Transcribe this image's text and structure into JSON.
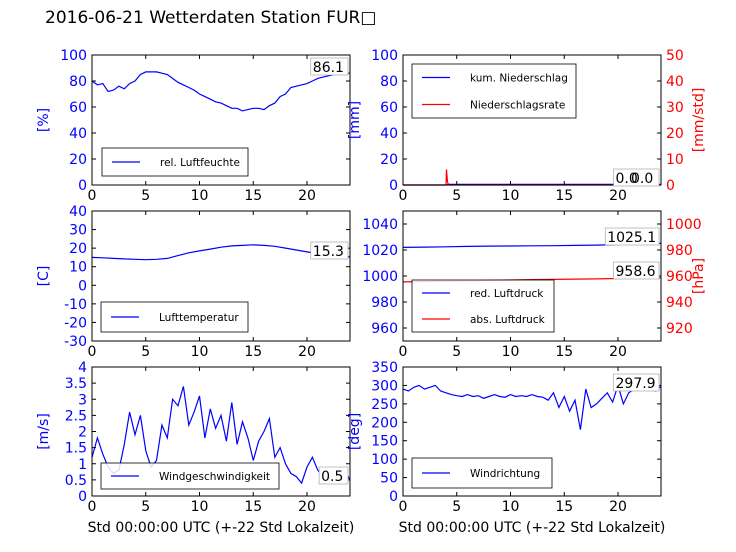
{
  "title": "2016-06-21 Wetterdaten Station FUR□",
  "xlabel": "Std 00:00:00 UTC (+-22 Std Lokalzeit)",
  "chart_data": [
    {
      "type": "line",
      "ylabel": "[%]",
      "xlim": [
        0,
        24
      ],
      "ylim": [
        0,
        100
      ],
      "xticks": [
        0,
        5,
        10,
        15,
        20
      ],
      "yticks": [
        0,
        20,
        40,
        60,
        80,
        100
      ],
      "current_value": "86.1",
      "legend_position": "lower-left",
      "series": [
        {
          "name": "rel. Luftfeuchte",
          "color": "#0000ff",
          "x": [
            0,
            0.5,
            1,
            1.5,
            2,
            2.5,
            3,
            3.5,
            4,
            4.5,
            5,
            5.5,
            6,
            6.5,
            7,
            7.5,
            8,
            8.5,
            9,
            9.5,
            10,
            10.5,
            11,
            11.5,
            12,
            12.5,
            13,
            13.5,
            14,
            14.5,
            15,
            15.5,
            16,
            16.5,
            17,
            17.5,
            18,
            18.5,
            19,
            19.5,
            20,
            20.5,
            21,
            21.5,
            22,
            22.5,
            23,
            23.5,
            24
          ],
          "y": [
            80,
            77,
            78,
            72,
            73,
            76,
            74,
            78,
            80,
            85,
            87,
            87,
            87,
            86,
            85,
            82,
            79,
            77,
            75,
            73,
            70,
            68,
            66,
            64,
            63,
            61,
            59,
            59,
            57,
            58,
            59,
            59,
            58,
            61,
            63,
            68,
            70,
            75,
            76,
            77,
            78,
            80,
            82,
            83,
            84,
            85,
            86,
            86,
            86
          ]
        }
      ]
    },
    {
      "type": "line",
      "ylabel": "[mm]",
      "ylabel_right": "[mm/std]",
      "xlim": [
        0,
        24
      ],
      "ylim": [
        0,
        100
      ],
      "ylim_right": [
        0,
        50
      ],
      "xticks": [
        0,
        5,
        10,
        15,
        20
      ],
      "yticks": [
        0,
        20,
        40,
        60,
        80,
        100
      ],
      "yticks_right": [
        0,
        10,
        20,
        30,
        40,
        50
      ],
      "current_value": "0.0",
      "current_value_right": "0.0",
      "legend_position": "upper-left",
      "series": [
        {
          "name": "kum. Niederschlag",
          "color": "#0000ff",
          "axis": "left",
          "x": [
            0,
            4,
            4.3,
            24
          ],
          "y": [
            0,
            0,
            0.5,
            0.5
          ]
        },
        {
          "name": "Niederschlagsrate",
          "color": "#ff0000",
          "axis": "right",
          "x": [
            0,
            4.0,
            4.05,
            4.1,
            4.15,
            4.2,
            4.25,
            4.3,
            24
          ],
          "y": [
            0,
            0,
            6,
            3,
            1,
            0.5,
            0.2,
            0,
            0
          ]
        }
      ]
    },
    {
      "type": "line",
      "ylabel": "[C]",
      "xlim": [
        0,
        24
      ],
      "ylim": [
        -30,
        40
      ],
      "xticks": [
        0,
        5,
        10,
        15,
        20
      ],
      "yticks": [
        -30,
        -20,
        -10,
        0,
        10,
        20,
        30,
        40
      ],
      "current_value": "15.3",
      "legend_position": "lower-left",
      "series": [
        {
          "name": "Lufttemperatur",
          "color": "#0000ff",
          "x": [
            0,
            1,
            2,
            3,
            4,
            5,
            6,
            7,
            8,
            9,
            10,
            11,
            12,
            13,
            14,
            15,
            16,
            17,
            18,
            19,
            20,
            21,
            22,
            23,
            24
          ],
          "y": [
            15,
            14.8,
            14.5,
            14.2,
            14,
            13.8,
            14,
            14.5,
            16,
            17.5,
            18.5,
            19.5,
            20.5,
            21.2,
            21.5,
            21.8,
            21.5,
            21,
            20,
            19,
            18,
            17,
            16.2,
            15.6,
            15.3
          ]
        }
      ]
    },
    {
      "type": "line",
      "ylabel_right": "[hPa]",
      "xlim": [
        0,
        24
      ],
      "ylim": [
        950,
        1050
      ],
      "ylim_right": [
        910,
        1010
      ],
      "xticks": [
        0,
        5,
        10,
        15,
        20
      ],
      "yticks": [
        960,
        980,
        1000,
        1020,
        1040
      ],
      "yticks_right": [
        920,
        940,
        960,
        980,
        1000
      ],
      "current_value": "1025.1",
      "current_value_right": "958.6",
      "legend_position": "lower-left",
      "series": [
        {
          "name": "red. Luftdruck",
          "color": "#0000ff",
          "axis": "left",
          "x": [
            0,
            2,
            4,
            6,
            8,
            10,
            12,
            14,
            16,
            18,
            20,
            22,
            24
          ],
          "y": [
            1022,
            1022.2,
            1022.5,
            1022.8,
            1023,
            1023.1,
            1023.2,
            1023.3,
            1023.5,
            1023.8,
            1024.2,
            1024.6,
            1025.1
          ]
        },
        {
          "name": "abs. Luftdruck",
          "color": "#ff0000",
          "axis": "right",
          "x": [
            0,
            2,
            4,
            6,
            8,
            10,
            12,
            14,
            16,
            18,
            20,
            22,
            24
          ],
          "y": [
            955.5,
            955.7,
            956,
            956.3,
            956.6,
            956.9,
            957.2,
            957.4,
            957.6,
            957.8,
            958.1,
            958.3,
            958.6
          ]
        }
      ]
    },
    {
      "type": "line",
      "ylabel": "[m/s]",
      "xlim": [
        0,
        24
      ],
      "ylim": [
        0,
        4.0
      ],
      "xticks": [
        0,
        5,
        10,
        15,
        20
      ],
      "yticks": [
        0.0,
        0.5,
        1.0,
        1.5,
        2.0,
        2.5,
        3.0,
        3.5,
        4.0
      ],
      "current_value": "0.5",
      "legend_position": "lower-center",
      "series": [
        {
          "name": "Windgeschwindigkeit",
          "color": "#0000ff",
          "x": [
            0,
            0.5,
            1,
            1.5,
            2,
            2.5,
            3,
            3.5,
            4,
            4.5,
            5,
            5.5,
            6,
            6.5,
            7,
            7.5,
            8,
            8.5,
            9,
            9.5,
            10,
            10.5,
            11,
            11.5,
            12,
            12.5,
            13,
            13.5,
            14,
            14.5,
            15,
            15.5,
            16,
            16.5,
            17,
            17.5,
            18,
            18.5,
            19,
            19.5,
            20,
            20.5,
            21,
            21.5,
            22,
            22.5,
            23,
            23.5,
            24
          ],
          "y": [
            1.2,
            1.8,
            1.3,
            0.9,
            0.7,
            0.8,
            1.6,
            2.6,
            1.9,
            2.5,
            1.4,
            0.9,
            1.1,
            2.2,
            1.8,
            3.0,
            2.8,
            3.4,
            2.2,
            2.6,
            3.1,
            1.8,
            2.7,
            2.1,
            2.5,
            1.7,
            2.9,
            1.6,
            2.3,
            1.8,
            1.1,
            1.7,
            2.0,
            2.4,
            1.2,
            1.5,
            1.0,
            0.7,
            0.6,
            0.4,
            0.9,
            1.2,
            0.8,
            0.6,
            0.4,
            0.7,
            0.5,
            0.8,
            0.5
          ]
        }
      ]
    },
    {
      "type": "line",
      "ylabel": "[deg]",
      "xlim": [
        0,
        24
      ],
      "ylim": [
        0,
        350
      ],
      "xticks": [
        0,
        5,
        10,
        15,
        20
      ],
      "yticks": [
        0,
        50,
        100,
        150,
        200,
        250,
        300,
        350
      ],
      "current_value": "297.9",
      "legend_position": "lower-left",
      "series": [
        {
          "name": "Windrichtung",
          "color": "#0000ff",
          "x": [
            0,
            0.5,
            1,
            1.5,
            2,
            2.5,
            3,
            3.5,
            4,
            4.5,
            5,
            5.5,
            6,
            6.5,
            7,
            7.5,
            8,
            8.5,
            9,
            9.5,
            10,
            10.5,
            11,
            11.5,
            12,
            12.5,
            13,
            13.5,
            14,
            14.5,
            15,
            15.5,
            16,
            16.5,
            17,
            17.5,
            18,
            18.5,
            19,
            19.5,
            20,
            20.5,
            21,
            21.5,
            22,
            22.5,
            23,
            23.5,
            24
          ],
          "y": [
            290,
            285,
            295,
            300,
            290,
            295,
            300,
            285,
            280,
            275,
            272,
            270,
            275,
            270,
            272,
            265,
            270,
            275,
            270,
            268,
            275,
            270,
            272,
            270,
            275,
            270,
            268,
            260,
            280,
            240,
            270,
            230,
            260,
            180,
            290,
            240,
            250,
            265,
            280,
            255,
            300,
            250,
            280,
            290,
            300,
            295,
            290,
            285,
            298
          ]
        }
      ]
    }
  ]
}
